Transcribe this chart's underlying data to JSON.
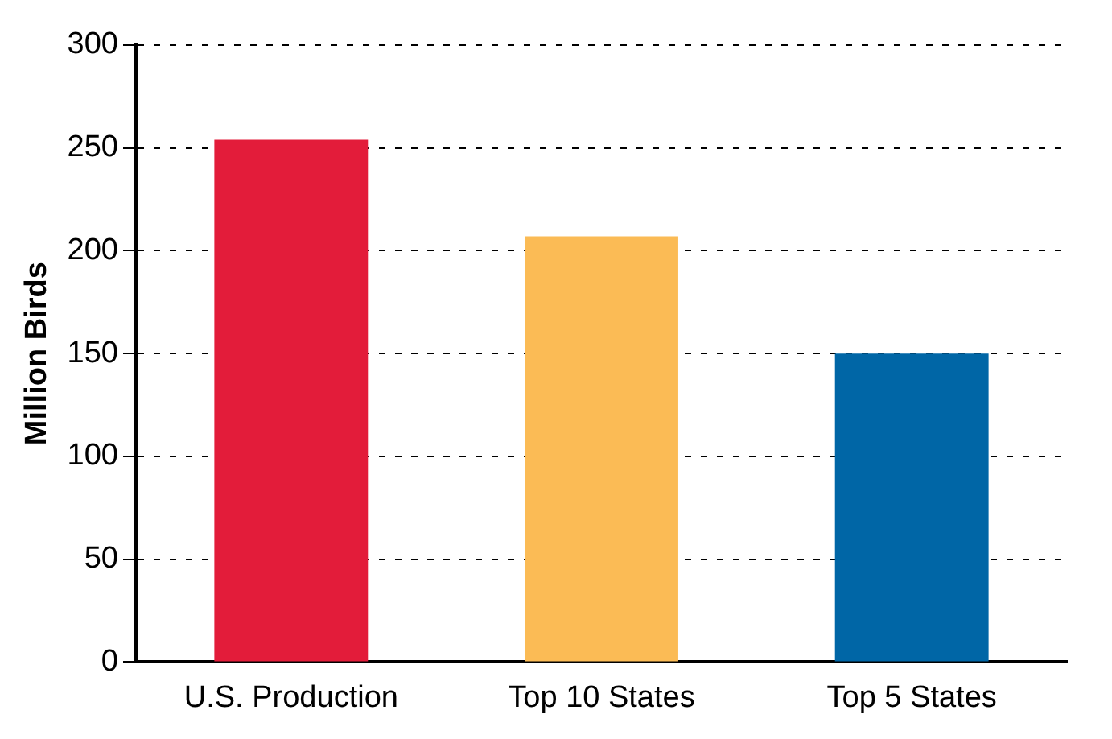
{
  "chart_data": {
    "type": "bar",
    "categories": [
      "U.S. Production",
      "Top 10 States",
      "Top 5 States"
    ],
    "values": [
      254,
      207,
      150
    ],
    "colors": [
      "#e31c3a",
      "#fbbb55",
      "#0066a6"
    ],
    "ylabel": "Million Birds",
    "ylim": [
      0,
      300
    ],
    "yticks": [
      0,
      50,
      100,
      150,
      200,
      250,
      300
    ],
    "grid": "y",
    "legend": false
  }
}
